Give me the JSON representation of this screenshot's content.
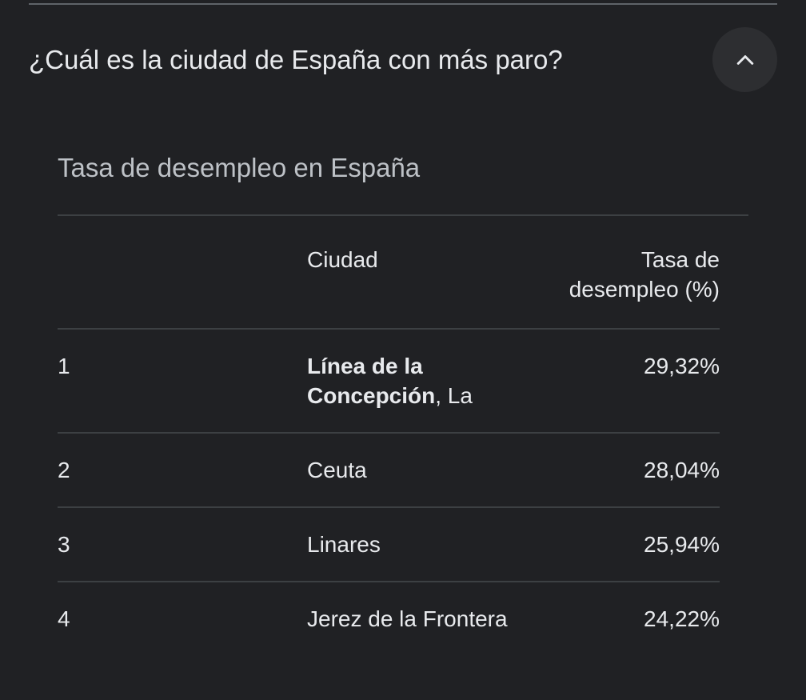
{
  "question": "¿Cuál es la ciudad de España con más paro?",
  "table": {
    "title": "Tasa de desempleo en España",
    "headers": {
      "rank": "",
      "city": "Ciudad",
      "rate_line1": "Tasa de",
      "rate_line2": "desempleo (%)"
    },
    "rows": [
      {
        "rank": "1",
        "city_bold": "Línea de la Concepción",
        "city_rest": ", La",
        "rate": "29,32%"
      },
      {
        "rank": "2",
        "city_bold": "",
        "city_rest": "Ceuta",
        "rate": "28,04%"
      },
      {
        "rank": "3",
        "city_bold": "",
        "city_rest": "Linares",
        "rate": "25,94%"
      },
      {
        "rank": "4",
        "city_bold": "",
        "city_rest": "Jerez de la Frontera",
        "rate": "24,22%"
      }
    ]
  },
  "icons": {
    "collapse": "chevron-up-icon"
  },
  "colors": {
    "background": "#202124",
    "text": "#e8eaed",
    "title_text": "#bdc1c6",
    "divider": "#3c4043",
    "button_bg": "#2d2e31"
  }
}
